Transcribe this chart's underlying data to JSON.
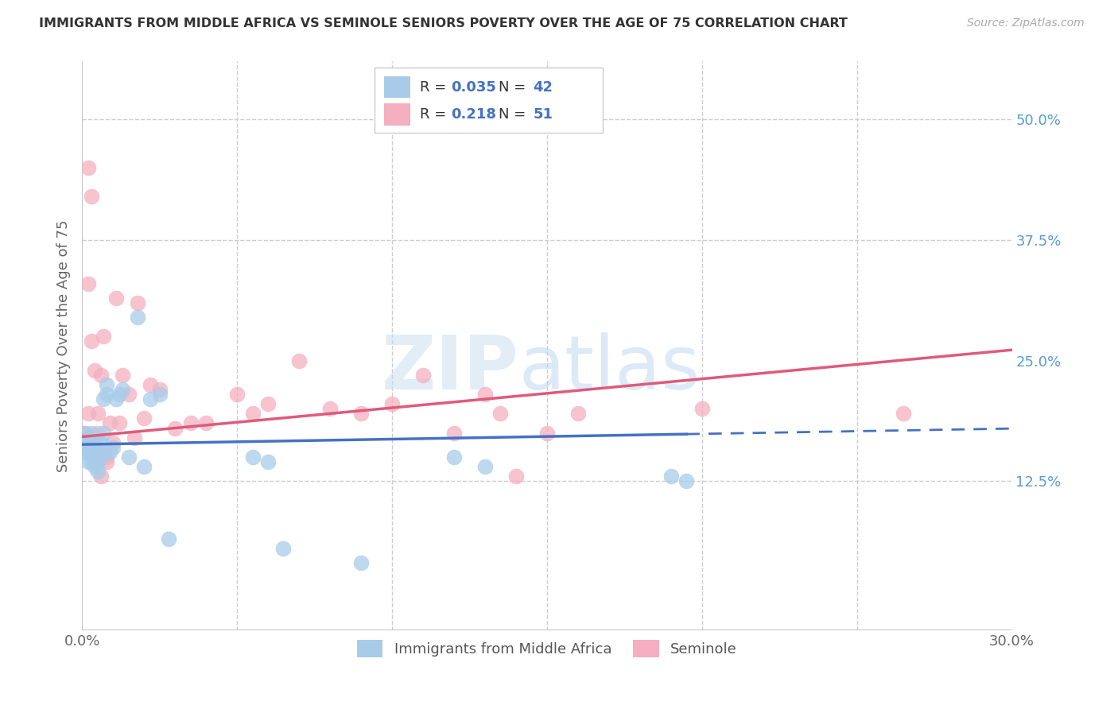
{
  "title": "IMMIGRANTS FROM MIDDLE AFRICA VS SEMINOLE SENIORS POVERTY OVER THE AGE OF 75 CORRELATION CHART",
  "source": "Source: ZipAtlas.com",
  "ylabel": "Seniors Poverty Over the Age of 75",
  "xlim": [
    0.0,
    0.3
  ],
  "ylim": [
    -0.03,
    0.56
  ],
  "xticks": [
    0.0,
    0.05,
    0.1,
    0.15,
    0.2,
    0.25,
    0.3
  ],
  "right_yticks": [
    0.125,
    0.25,
    0.375,
    0.5
  ],
  "right_yticklabels": [
    "12.5%",
    "25.0%",
    "37.5%",
    "50.0%"
  ],
  "dashed_hlines": [
    0.125,
    0.375,
    0.5
  ],
  "series1_color": "#a8cce8",
  "series2_color": "#f4afc0",
  "line1_color": "#4472c4",
  "line2_color": "#e05a7a",
  "background_color": "#ffffff",
  "series1_x": [
    0.001,
    0.001,
    0.001,
    0.002,
    0.002,
    0.002,
    0.002,
    0.003,
    0.003,
    0.003,
    0.003,
    0.004,
    0.004,
    0.004,
    0.005,
    0.005,
    0.005,
    0.006,
    0.006,
    0.007,
    0.007,
    0.008,
    0.008,
    0.009,
    0.01,
    0.011,
    0.012,
    0.013,
    0.015,
    0.018,
    0.02,
    0.022,
    0.025,
    0.028,
    0.055,
    0.06,
    0.065,
    0.09,
    0.12,
    0.13,
    0.19,
    0.195
  ],
  "series1_y": [
    0.175,
    0.165,
    0.155,
    0.17,
    0.16,
    0.155,
    0.145,
    0.175,
    0.165,
    0.155,
    0.145,
    0.16,
    0.15,
    0.14,
    0.155,
    0.145,
    0.135,
    0.165,
    0.15,
    0.175,
    0.21,
    0.225,
    0.215,
    0.155,
    0.16,
    0.21,
    0.215,
    0.22,
    0.15,
    0.295,
    0.14,
    0.21,
    0.215,
    0.065,
    0.15,
    0.145,
    0.055,
    0.04,
    0.15,
    0.14,
    0.13,
    0.125
  ],
  "series2_x": [
    0.001,
    0.001,
    0.002,
    0.002,
    0.002,
    0.002,
    0.003,
    0.003,
    0.003,
    0.004,
    0.004,
    0.004,
    0.005,
    0.005,
    0.005,
    0.006,
    0.006,
    0.007,
    0.007,
    0.008,
    0.008,
    0.009,
    0.01,
    0.011,
    0.012,
    0.013,
    0.015,
    0.017,
    0.018,
    0.02,
    0.022,
    0.025,
    0.03,
    0.035,
    0.04,
    0.05,
    0.055,
    0.06,
    0.07,
    0.08,
    0.09,
    0.1,
    0.11,
    0.12,
    0.13,
    0.135,
    0.14,
    0.15,
    0.16,
    0.2,
    0.265
  ],
  "series2_y": [
    0.175,
    0.16,
    0.45,
    0.33,
    0.195,
    0.17,
    0.42,
    0.27,
    0.155,
    0.24,
    0.165,
    0.145,
    0.195,
    0.175,
    0.15,
    0.235,
    0.13,
    0.275,
    0.155,
    0.15,
    0.145,
    0.185,
    0.165,
    0.315,
    0.185,
    0.235,
    0.215,
    0.17,
    0.31,
    0.19,
    0.225,
    0.22,
    0.18,
    0.185,
    0.185,
    0.215,
    0.195,
    0.205,
    0.25,
    0.2,
    0.195,
    0.205,
    0.235,
    0.175,
    0.215,
    0.195,
    0.13,
    0.175,
    0.195,
    0.2,
    0.195
  ]
}
